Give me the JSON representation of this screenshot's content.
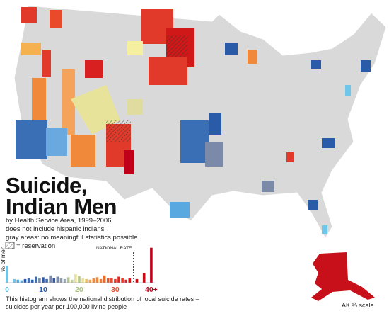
{
  "title_lines": [
    "Suicide,",
    "Indian Men"
  ],
  "subtitle_lines": [
    "by Health Service Area, 1999–2006",
    "does not include hispanic indians",
    "gray areas: no meaningful statistics possible"
  ],
  "reservation_legend": "= reservation",
  "alaska_note": "AK ⅓ scale",
  "histogram": {
    "type": "bar",
    "ylabel": "% of men",
    "annotation": "NATIONAL RATE",
    "national_rate": 35,
    "xlim": [
      0,
      41
    ],
    "ylim": [
      0,
      60
    ],
    "xticks": [
      {
        "value": 0,
        "label": "0",
        "color": "#5bc0eb"
      },
      {
        "value": 10,
        "label": "10",
        "color": "#2a5ba8"
      },
      {
        "value": 20,
        "label": "20",
        "color": "#a9bf7a"
      },
      {
        "value": 30,
        "label": "30",
        "color": "#e8502a"
      },
      {
        "value": 40,
        "label": "40+",
        "color": "#c0001a"
      }
    ],
    "x": [
      0,
      2,
      3,
      4,
      5,
      6,
      7,
      8,
      9,
      10,
      11,
      12,
      13,
      14,
      15,
      16,
      17,
      18,
      19,
      20,
      21,
      22,
      23,
      24,
      25,
      26,
      27,
      28,
      29,
      30,
      31,
      32,
      33,
      34,
      36,
      38,
      40
    ],
    "values": [
      28,
      6,
      5,
      4,
      6,
      8,
      5,
      10,
      7,
      9,
      6,
      12,
      8,
      10,
      7,
      6,
      9,
      5,
      14,
      11,
      8,
      6,
      5,
      7,
      9,
      6,
      12,
      8,
      7,
      6,
      10,
      8,
      5,
      7,
      6,
      16,
      58
    ],
    "colors": [
      "#6ec6ea",
      "#6ec6ea",
      "#5aa8e0",
      "#5aa8e0",
      "#2a5ba8",
      "#3a6fb5",
      "#2a5ba8",
      "#3a6fb5",
      "#7a8aa8",
      "#2a5ba8",
      "#3a6fb5",
      "#7a8aa8",
      "#2a5ba8",
      "#7a8aa8",
      "#8a9ab0",
      "#9aa8b8",
      "#b7c98a",
      "#c5d09a",
      "#e8e39a",
      "#b7c98a",
      "#e8e39a",
      "#f3c06a",
      "#f5a35a",
      "#f08a3a",
      "#f08a3a",
      "#ef7a30",
      "#ec6a2a",
      "#e85a2a",
      "#e84a2a",
      "#e23a2a",
      "#dd2a22",
      "#e23a2a",
      "#d82020",
      "#d01818",
      "#c81010",
      "#c80a14",
      "#c0001a"
    ],
    "caption_lines": [
      "This histogram shows the national distribution of local suicide rates –",
      "suicides per year per 100,000 living people"
    ]
  }
}
